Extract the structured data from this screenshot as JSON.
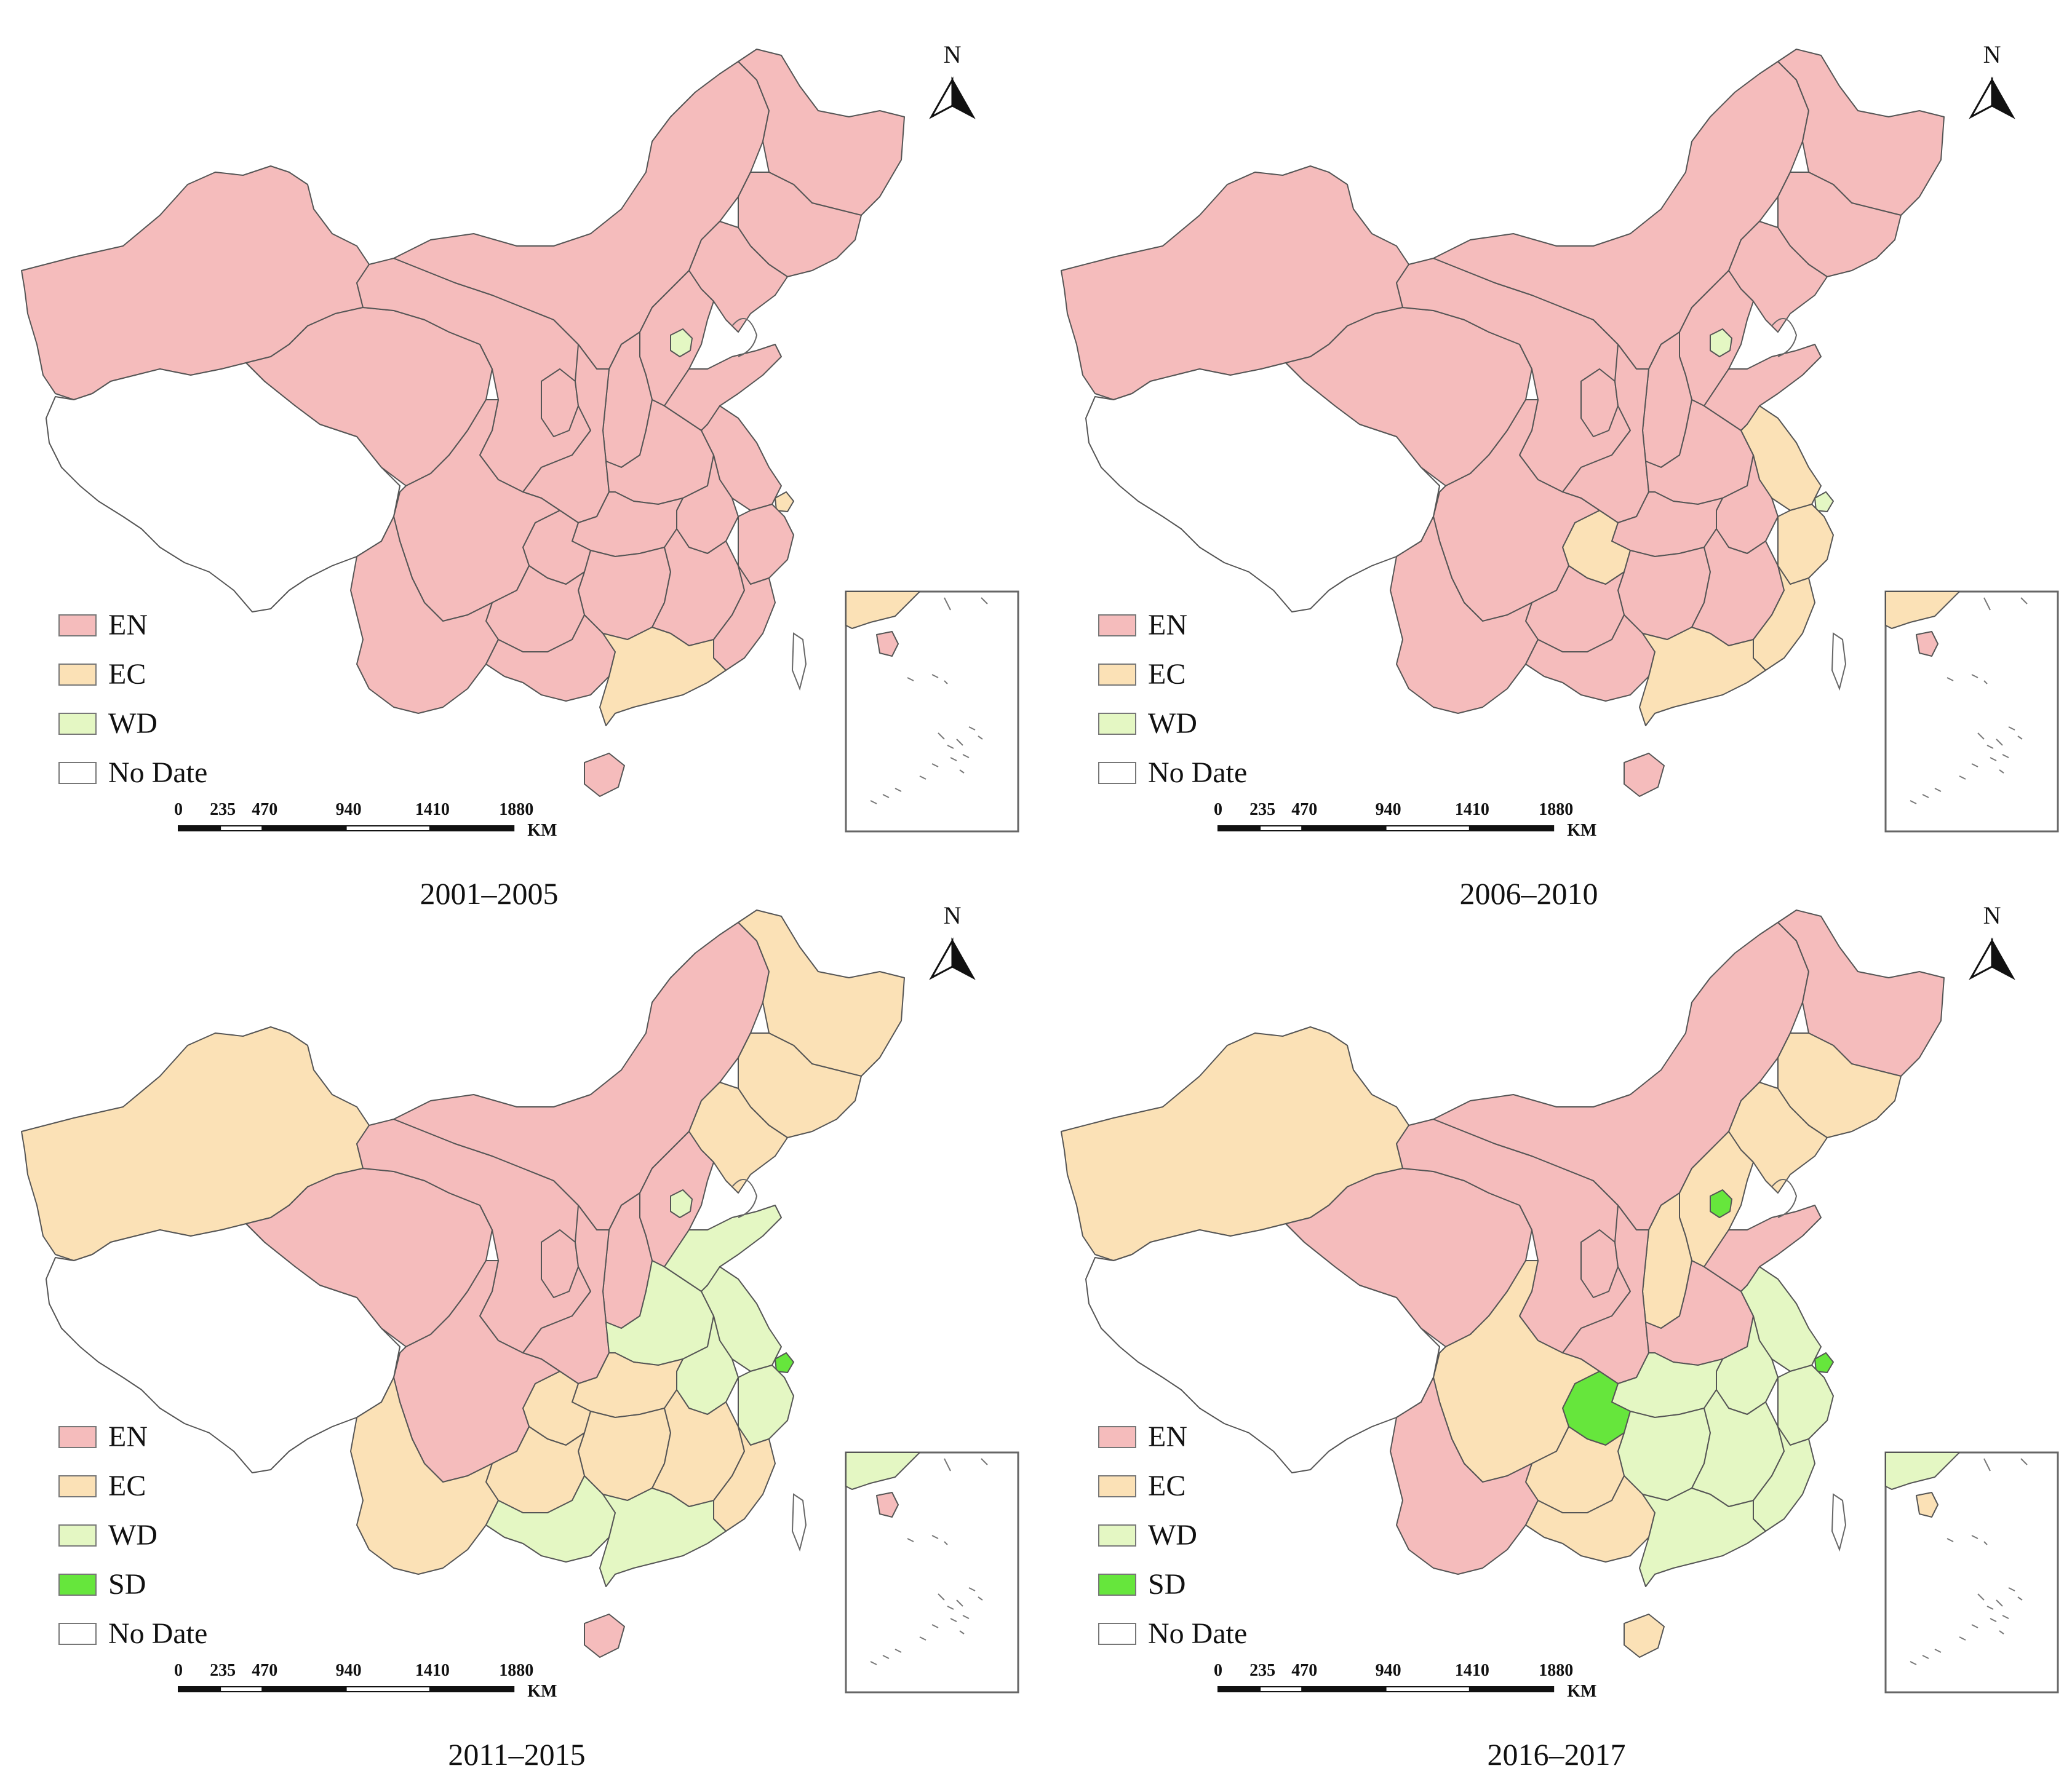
{
  "figure": {
    "north_label": "N",
    "scale_unit": "KM",
    "scale_ticks": [
      "0",
      "235",
      "470",
      "940",
      "1410",
      "1880"
    ],
    "colors": {
      "EN": "#f5bcbc",
      "EC": "#fbe1b6",
      "WD": "#e4f7c3",
      "SD": "#66e63c",
      "No Date": "#ffffff"
    },
    "categories": [
      "EN",
      "EC",
      "WD",
      "SD",
      "No Date"
    ],
    "panels": [
      {
        "period": "2001–2005",
        "legend": [
          "EN",
          "EC",
          "WD",
          "No Date"
        ],
        "regions": {
          "xinjiang": "EN",
          "tibet": "No Date",
          "qinghai": "EN",
          "gansu": "EN",
          "innermongolia": "EN",
          "heilongjiang": "EN",
          "jilin": "EN",
          "liaoning": "EN",
          "beijing": "WD",
          "hebei": "EN",
          "shanxi": "EN",
          "shaanxi": "EN",
          "ningxia": "EN",
          "henan": "EN",
          "shandong": "EN",
          "jiangsu": "EN",
          "anhui": "EN",
          "shanghai": "EC",
          "hubei": "EN",
          "chongqing": "EN",
          "sichuan": "EN",
          "hunan": "EN",
          "jiangxi": "EN",
          "zhejiang": "EN",
          "fujian": "EN",
          "guizhou": "EN",
          "yunnan": "EN",
          "guangxi": "EN",
          "guangdong": "EC",
          "hainan": "EN"
        }
      },
      {
        "period": "2006–2010",
        "legend": [
          "EN",
          "EC",
          "WD",
          "No Date"
        ],
        "regions": {
          "xinjiang": "EN",
          "tibet": "No Date",
          "qinghai": "EN",
          "gansu": "EN",
          "innermongolia": "EN",
          "heilongjiang": "EN",
          "jilin": "EN",
          "liaoning": "EN",
          "beijing": "WD",
          "hebei": "EN",
          "shanxi": "EN",
          "shaanxi": "EN",
          "ningxia": "EN",
          "henan": "EN",
          "shandong": "EN",
          "jiangsu": "EC",
          "anhui": "EN",
          "shanghai": "WD",
          "hubei": "EN",
          "chongqing": "EC",
          "sichuan": "EN",
          "hunan": "EN",
          "jiangxi": "EN",
          "zhejiang": "EC",
          "fujian": "EC",
          "guizhou": "EN",
          "yunnan": "EN",
          "guangxi": "EN",
          "guangdong": "EC",
          "hainan": "EN"
        }
      },
      {
        "period": "2011–2015",
        "legend": [
          "EN",
          "EC",
          "WD",
          "SD",
          "No Date"
        ],
        "regions": {
          "xinjiang": "EC",
          "tibet": "No Date",
          "qinghai": "EN",
          "gansu": "EN",
          "innermongolia": "EN",
          "heilongjiang": "EC",
          "jilin": "EC",
          "liaoning": "EC",
          "beijing": "WD",
          "hebei": "EN",
          "shanxi": "EN",
          "shaanxi": "EN",
          "ningxia": "EN",
          "henan": "WD",
          "shandong": "WD",
          "jiangsu": "WD",
          "anhui": "WD",
          "shanghai": "SD",
          "hubei": "EC",
          "chongqing": "EC",
          "sichuan": "EN",
          "hunan": "EC",
          "jiangxi": "EC",
          "zhejiang": "WD",
          "fujian": "EC",
          "guizhou": "EC",
          "yunnan": "EC",
          "guangxi": "WD",
          "guangdong": "WD",
          "hainan": "EN"
        }
      },
      {
        "period": "2016–2017",
        "legend": [
          "EN",
          "EC",
          "WD",
          "SD",
          "No Date"
        ],
        "regions": {
          "xinjiang": "EC",
          "tibet": "No Date",
          "qinghai": "EN",
          "gansu": "EN",
          "innermongolia": "EN",
          "heilongjiang": "EN",
          "jilin": "EC",
          "liaoning": "EC",
          "beijing": "SD",
          "hebei": "EC",
          "shanxi": "EC",
          "shaanxi": "EN",
          "ningxia": "EN",
          "henan": "EN",
          "shandong": "EN",
          "jiangsu": "WD",
          "anhui": "WD",
          "shanghai": "SD",
          "hubei": "WD",
          "chongqing": "SD",
          "sichuan": "EC",
          "hunan": "WD",
          "jiangxi": "WD",
          "zhejiang": "WD",
          "fujian": "WD",
          "guizhou": "EC",
          "yunnan": "EN",
          "guangxi": "EC",
          "guangdong": "WD",
          "hainan": "EC"
        }
      }
    ]
  }
}
